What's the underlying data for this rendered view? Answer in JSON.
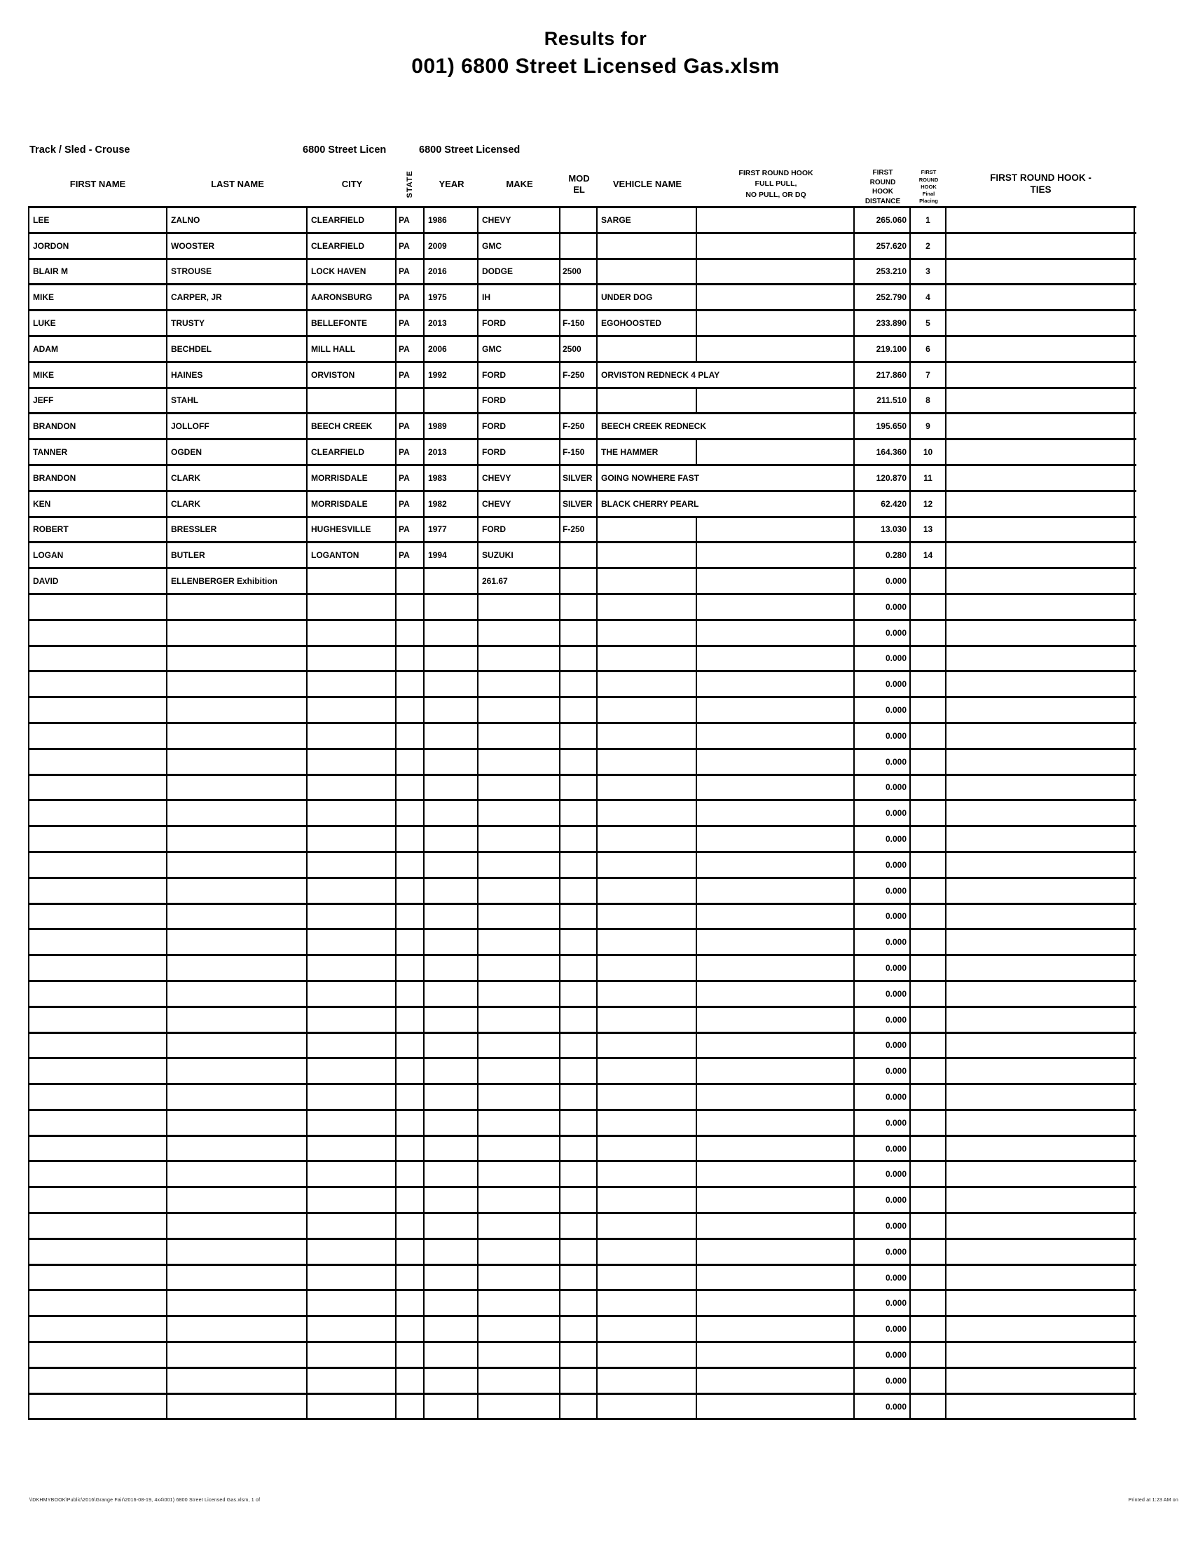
{
  "title": {
    "line1": "Results for",
    "line2": "001) 6800 Street Licensed Gas.xlsm"
  },
  "meta": {
    "track": "Track / Sled - Crouse",
    "sheet_left": "6800 Street Licen",
    "sheet_right": "6800 Street Licensed"
  },
  "table": {
    "columns": [
      {
        "key": "first_name",
        "label": "FIRST NAME"
      },
      {
        "key": "last_name",
        "label": "LAST NAME"
      },
      {
        "key": "city",
        "label": "CITY"
      },
      {
        "key": "state",
        "label": "STATE"
      },
      {
        "key": "year",
        "label": "YEAR"
      },
      {
        "key": "make",
        "label": "MAKE"
      },
      {
        "key": "model",
        "label": "MOD\nEL"
      },
      {
        "key": "vehicle_name",
        "label": "VEHICLE NAME"
      },
      {
        "key": "full_pull",
        "label": "FIRST ROUND HOOK\nFULL PULL,\nNO PULL, OR DQ"
      },
      {
        "key": "distance",
        "label": "FIRST\nROUND\nHOOK\nDISTANCE"
      },
      {
        "key": "placing",
        "label": "FIRST\nROUND\nHOOK\nFinal\nPlacing"
      },
      {
        "key": "ties",
        "label": "FIRST ROUND HOOK -\nTIES"
      }
    ],
    "rows": [
      {
        "fn": "LEE",
        "ln": "ZALNO",
        "city": "CLEARFIELD",
        "st": "PA",
        "yr": "1986",
        "make": "CHEVY",
        "model": "",
        "veh": "SARGE",
        "fp": "",
        "dist": "265.060",
        "plc": "1",
        "ties": "",
        "ovf": false
      },
      {
        "fn": "JORDON",
        "ln": "WOOSTER",
        "city": "CLEARFIELD",
        "st": "PA",
        "yr": "2009",
        "make": "GMC",
        "model": "",
        "veh": "",
        "fp": "",
        "dist": "257.620",
        "plc": "2",
        "ties": "",
        "ovf": false
      },
      {
        "fn": "BLAIR M",
        "ln": "STROUSE",
        "city": "LOCK HAVEN",
        "st": "PA",
        "yr": "2016",
        "make": "DODGE",
        "model": "2500",
        "veh": "",
        "fp": "",
        "dist": "253.210",
        "plc": "3",
        "ties": "",
        "ovf": false
      },
      {
        "fn": "MIKE",
        "ln": "CARPER, JR",
        "city": "AARONSBURG",
        "st": "PA",
        "yr": "1975",
        "make": "IH",
        "model": "",
        "veh": "UNDER DOG",
        "fp": "",
        "dist": "252.790",
        "plc": "4",
        "ties": "",
        "ovf": false
      },
      {
        "fn": "LUKE",
        "ln": "TRUSTY",
        "city": "BELLEFONTE",
        "st": "PA",
        "yr": "2013",
        "make": "FORD",
        "model": "F-150",
        "veh": "EGOHOOSTED",
        "fp": "",
        "dist": "233.890",
        "plc": "5",
        "ties": "",
        "ovf": false
      },
      {
        "fn": "ADAM",
        "ln": "BECHDEL",
        "city": "MILL HALL",
        "st": "PA",
        "yr": "2006",
        "make": "GMC",
        "model": "2500",
        "veh": "",
        "fp": "",
        "dist": "219.100",
        "plc": "6",
        "ties": "",
        "ovf": false
      },
      {
        "fn": "MIKE",
        "ln": "HAINES",
        "city": "ORVISTON",
        "st": "PA",
        "yr": "1992",
        "make": "FORD",
        "model": "F-250",
        "veh": "ORVISTON REDNECK 4 PLAY",
        "fp": "",
        "dist": "217.860",
        "plc": "7",
        "ties": "",
        "ovf": true
      },
      {
        "fn": "JEFF",
        "ln": "STAHL",
        "city": "",
        "st": "",
        "yr": "",
        "make": "FORD",
        "model": "",
        "veh": "",
        "fp": "",
        "dist": "211.510",
        "plc": "8",
        "ties": "",
        "ovf": false
      },
      {
        "fn": "BRANDON",
        "ln": "JOLLOFF",
        "city": "BEECH CREEK",
        "st": "PA",
        "yr": "1989",
        "make": "FORD",
        "model": "F-250",
        "veh": "BEECH CREEK REDNECK",
        "fp": "",
        "dist": "195.650",
        "plc": "9",
        "ties": "",
        "ovf": true
      },
      {
        "fn": "TANNER",
        "ln": "OGDEN",
        "city": "CLEARFIELD",
        "st": "PA",
        "yr": "2013",
        "make": "FORD",
        "model": "F-150",
        "veh": "THE HAMMER",
        "fp": "",
        "dist": "164.360",
        "plc": "10",
        "ties": "",
        "ovf": false
      },
      {
        "fn": "BRANDON",
        "ln": "CLARK",
        "city": "MORRISDALE",
        "st": "PA",
        "yr": "1983",
        "make": "CHEVY",
        "model": "SILVER",
        "veh": "GOING NOWHERE FAST",
        "fp": "",
        "dist": "120.870",
        "plc": "11",
        "ties": "",
        "ovf": true
      },
      {
        "fn": "KEN",
        "ln": "CLARK",
        "city": "MORRISDALE",
        "st": "PA",
        "yr": "1982",
        "make": "CHEVY",
        "model": "SILVER",
        "veh": "BLACK CHERRY PEARL",
        "fp": "",
        "dist": "62.420",
        "plc": "12",
        "ties": "",
        "ovf": true
      },
      {
        "fn": "ROBERT",
        "ln": "BRESSLER",
        "city": "HUGHESVILLE",
        "st": "PA",
        "yr": "1977",
        "make": "FORD",
        "model": "F-250",
        "veh": "",
        "fp": "",
        "dist": "13.030",
        "plc": "13",
        "ties": "",
        "ovf": false
      },
      {
        "fn": "LOGAN",
        "ln": "BUTLER",
        "city": "LOGANTON",
        "st": "PA",
        "yr": "1994",
        "make": "SUZUKI",
        "model": "",
        "veh": "",
        "fp": "",
        "dist": "0.280",
        "plc": "14",
        "ties": "",
        "ovf": false
      },
      {
        "fn": "DAVID",
        "ln": "ELLENBERGER Exhibition",
        "city": "",
        "st": "",
        "yr": "",
        "make": "261.67",
        "model": "",
        "veh": "",
        "fp": "",
        "dist": "0.000",
        "plc": "",
        "ties": "",
        "ovf": false
      }
    ],
    "empty_row_count": 32,
    "empty_row_distance": "0.000"
  },
  "footer": {
    "left": "\\\\DKHMYBOOK\\Public\\2016\\Grange Fair\\2016-08-19, 4x4\\001) 6800 Street Licensed Gas.xlsm, 1 of",
    "right": "Printed at 1:23 AM on"
  }
}
